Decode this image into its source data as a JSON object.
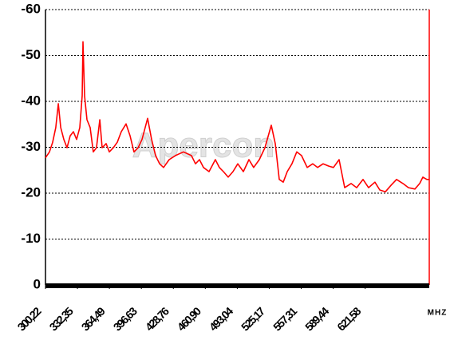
{
  "chart_data": {
    "type": "line",
    "watermark": "Apercon",
    "x_unit": "MHZ",
    "x": [
      300.2,
      304.2,
      307.4,
      310.6,
      313.1,
      315.5,
      318.7,
      321.9,
      325.1,
      328.3,
      331.5,
      334.7,
      337.1,
      337.9,
      339.5,
      341.9,
      345.1,
      348.3,
      351.5,
      354.8,
      357.2,
      361.2,
      364.4,
      368.4,
      372.4,
      376.4,
      381.2,
      385.2,
      389.2,
      393.3,
      397.3,
      402.9,
      406.9,
      410.9,
      414.9,
      418.9,
      424.5,
      430.9,
      438.9,
      446.9,
      451.0,
      455.0,
      459.0,
      464.6,
      471.0,
      475.0,
      479.1,
      483.9,
      488.7,
      493.5,
      499.1,
      504.7,
      509.5,
      515.2,
      520.8,
      527.2,
      531.2,
      535.2,
      539.2,
      543.2,
      548.0,
      552.8,
      557.6,
      563.3,
      568.9,
      573.7,
      579.3,
      585.0,
      589.7,
      595.4,
      601.0,
      607.4,
      613.0,
      619.4,
      625.0,
      631.4,
      636.3,
      641.9,
      647.5,
      653.1,
      659.5,
      665.1,
      671.6,
      676.4,
      679.6,
      683.6,
      686.0
    ],
    "series": [
      {
        "color": "#ff0000",
        "values": [
          -27.7,
          -29.0,
          -31.1,
          -34.3,
          -39.5,
          -34.3,
          -31.7,
          -29.9,
          -32.5,
          -33.4,
          -31.7,
          -34.3,
          -41.2,
          -53.0,
          -41.2,
          -36.0,
          -34.3,
          -29.0,
          -29.9,
          -36.0,
          -29.9,
          -30.8,
          -29.0,
          -29.9,
          -31.1,
          -33.4,
          -35.1,
          -32.5,
          -29.0,
          -29.9,
          -31.7,
          -36.3,
          -31.7,
          -28.2,
          -26.4,
          -25.6,
          -27.3,
          -28.2,
          -29.0,
          -28.2,
          -26.4,
          -27.3,
          -25.6,
          -24.7,
          -27.3,
          -25.6,
          -24.7,
          -23.5,
          -24.7,
          -26.4,
          -24.7,
          -27.3,
          -25.6,
          -27.3,
          -29.9,
          -34.8,
          -30.8,
          -23.0,
          -22.4,
          -24.7,
          -26.4,
          -29.0,
          -28.2,
          -25.6,
          -26.4,
          -25.6,
          -26.4,
          -25.9,
          -25.6,
          -27.3,
          -21.2,
          -22.1,
          -21.2,
          -23.0,
          -21.2,
          -22.4,
          -20.7,
          -20.3,
          -21.7,
          -23.0,
          -22.1,
          -21.2,
          -20.9,
          -22.1,
          -23.5,
          -23.0,
          -23.0
        ]
      }
    ],
    "xlim": [
      300.22,
      686.0
    ],
    "xticks": [
      {
        "value": 300.22,
        "label": "300,22"
      },
      {
        "value": 332.35,
        "label": "332,35"
      },
      {
        "value": 364.49,
        "label": "364,49"
      },
      {
        "value": 396.63,
        "label": "396,63"
      },
      {
        "value": 428.76,
        "label": "428,76"
      },
      {
        "value": 460.9,
        "label": "460,90"
      },
      {
        "value": 493.04,
        "label": "493,04"
      },
      {
        "value": 525.17,
        "label": "525,17"
      },
      {
        "value": 557.31,
        "label": "557,31"
      },
      {
        "value": 589.44,
        "label": "589,44"
      },
      {
        "value": 621.58,
        "label": "621,58"
      }
    ],
    "ylim": [
      0,
      -60
    ],
    "yticks": [
      0,
      -10,
      -20,
      -30,
      -40,
      -50,
      -60
    ],
    "grid": true
  }
}
